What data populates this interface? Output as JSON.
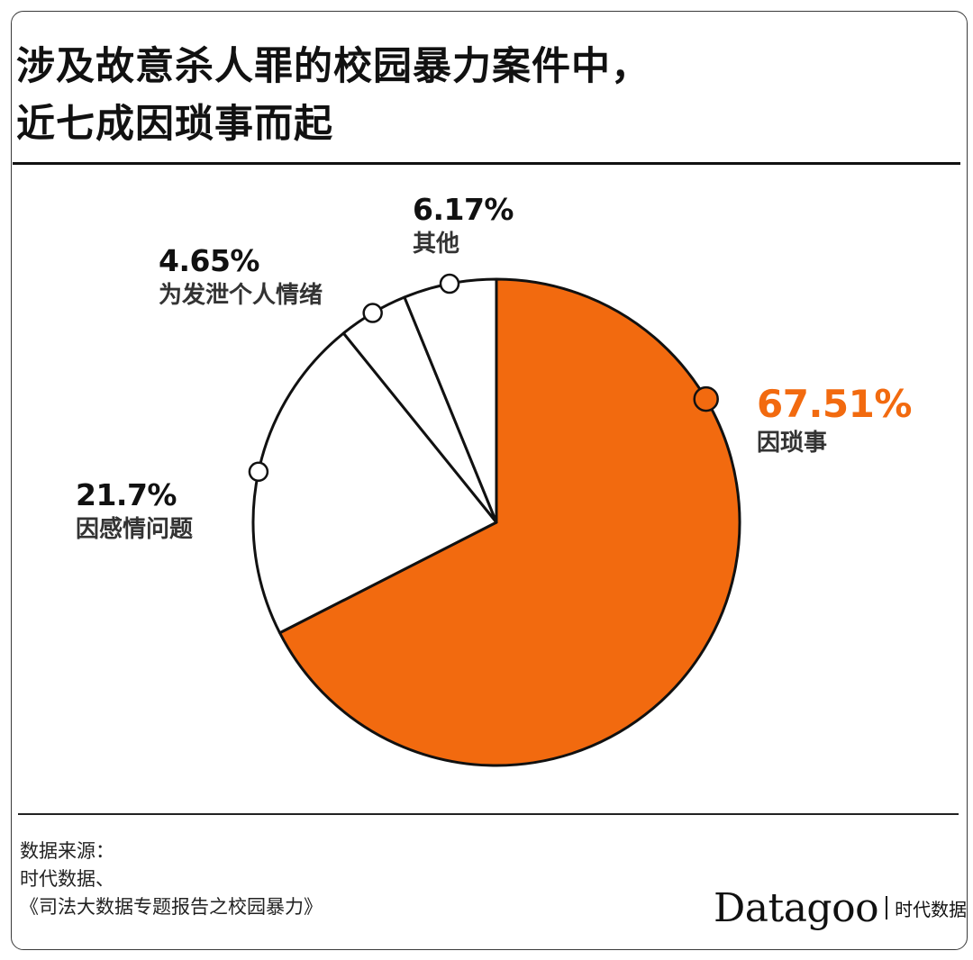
{
  "title_line1": "涉及故意杀人罪的校园暴力案件中，",
  "title_line2": "近七成因琐事而起",
  "source": {
    "line1": "数据来源：",
    "line2": "时代数据、",
    "line3": "《司法大数据专题报告之校园暴力》"
  },
  "brand": {
    "name": "Datagoo",
    "sub": "时代数据"
  },
  "colors": {
    "accent": "#f26a0f",
    "other": "#ffffff",
    "stroke": "#111111"
  },
  "chart_data": {
    "type": "pie",
    "start_angle_deg": 0,
    "direction": "clockwise",
    "slices": [
      {
        "label": "因琐事",
        "value": 67.51,
        "value_label": "67.51%",
        "color": "#f26a0f"
      },
      {
        "label": "因感情问题",
        "value": 21.7,
        "value_label": "21.7%",
        "color": "#ffffff"
      },
      {
        "label": "为发泄个人情绪",
        "value": 4.65,
        "value_label": "4.65%",
        "color": "#ffffff"
      },
      {
        "label": "其他",
        "value": 6.17,
        "value_label": "6.17%",
        "color": "#ffffff"
      }
    ]
  }
}
